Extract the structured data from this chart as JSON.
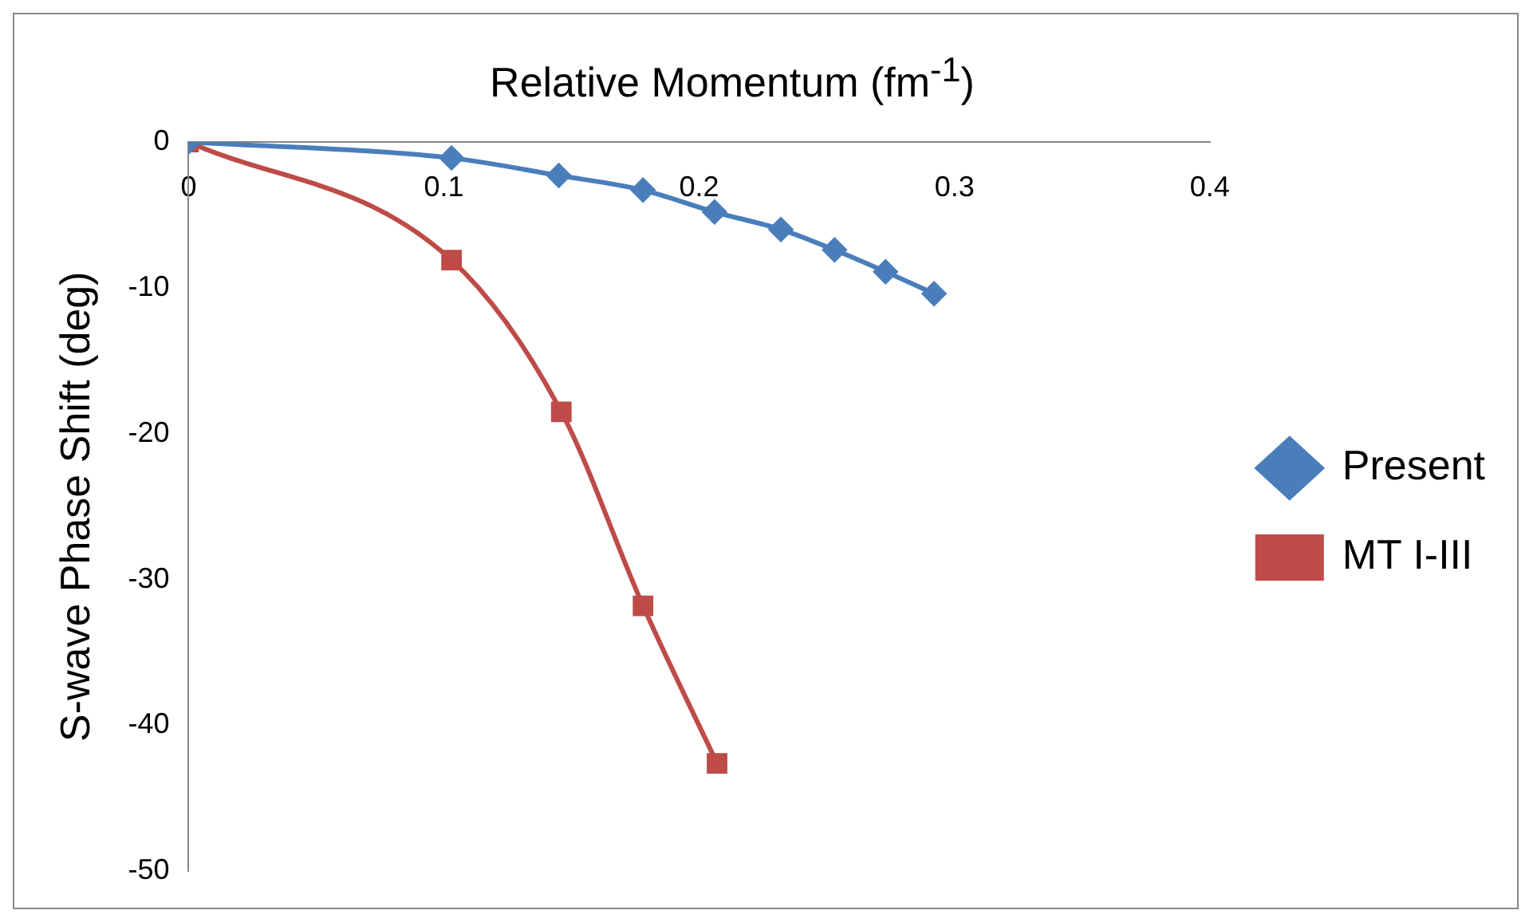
{
  "chart_data": {
    "type": "line",
    "xlabel": "Relative Momentum (fm$^{-1}$)",
    "ylabel": "S-wave Phase Shift (deg)",
    "xlim": [
      0,
      0.4
    ],
    "xticks": [
      0,
      0.1,
      0.2,
      0.3,
      0.4
    ],
    "ylim": [
      -50,
      0
    ],
    "yticks": [
      -50,
      -40,
      -30,
      -20,
      -10,
      0
    ],
    "grid": false,
    "legend": "right",
    "line_style": "solid",
    "series": [
      {
        "name": "Present",
        "color": "#4a7ebb",
        "marker": "diamond",
        "x": [
          0,
          0.103,
          0.145,
          0.178,
          0.206,
          0.232,
          0.253,
          0.273,
          0.292
        ],
        "values": [
          0,
          -1.1,
          -2.3,
          -3.3,
          -4.8,
          -6.0,
          -7.4,
          -8.9,
          -10.4
        ]
      },
      {
        "name": "MT I-III",
        "color": "#be4b48",
        "marker": "square",
        "x": [
          0,
          0.103,
          0.146,
          0.178,
          0.207
        ],
        "values": [
          0,
          -8.1,
          -18.5,
          -31.8,
          -42.6
        ]
      }
    ]
  }
}
